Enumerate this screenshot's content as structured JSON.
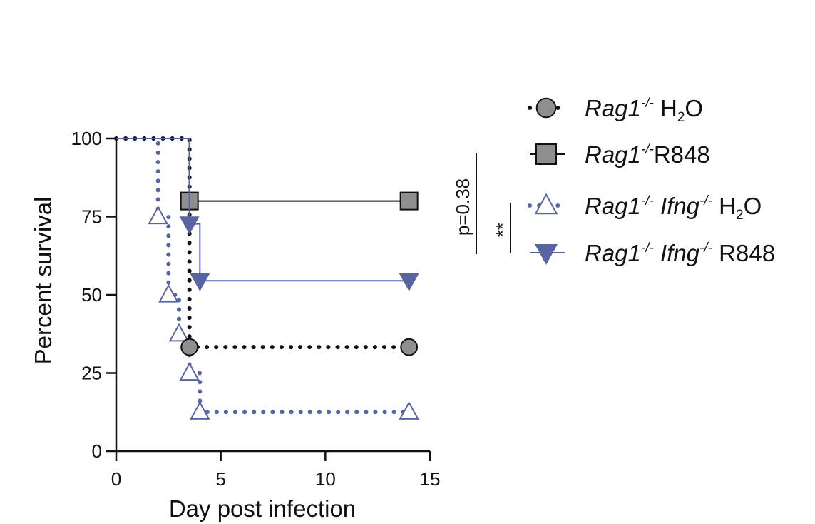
{
  "chart_data": {
    "type": "line",
    "subtype": "kaplan-meier survival",
    "title": "",
    "xlabel": "Day post infection",
    "ylabel": "Percent survival",
    "xlim": [
      0,
      15
    ],
    "ylim": [
      0,
      100
    ],
    "xticks": [
      0,
      5,
      10,
      15
    ],
    "yticks": [
      0,
      25,
      50,
      75,
      100
    ],
    "grid": false,
    "legend_position": "right",
    "colors": {
      "black": "#111111",
      "gray_fill": "#8f8f8f",
      "blue": "#5965a3"
    },
    "series": [
      {
        "name": "Rag1-/- H2O",
        "legend": {
          "gene": "Rag1",
          "gene_sup": "-/-",
          "treatment": "H",
          "treatment_sub": "2",
          "treatment_tail": "O"
        },
        "color": "#111111",
        "line_style": "dotted",
        "marker": "circle",
        "marker_fill": "#8f8f8f",
        "x": [
          0,
          3.5,
          3.5,
          14
        ],
        "y": [
          100,
          100,
          33.3,
          33.3
        ],
        "marked_points": [
          [
            3.5,
            33.3
          ],
          [
            14,
            33.3
          ]
        ]
      },
      {
        "name": "Rag1-/-R848",
        "legend": {
          "gene": "Rag1",
          "gene_sup": "-/-",
          "treatment": "R848"
        },
        "color": "#111111",
        "line_style": "solid",
        "marker": "square",
        "marker_fill": "#8f8f8f",
        "x": [
          0,
          3.5,
          3.5,
          14
        ],
        "y": [
          100,
          100,
          80,
          80
        ],
        "marked_points": [
          [
            3.5,
            80
          ],
          [
            14,
            80
          ]
        ]
      },
      {
        "name": "Rag1-/- Ifng-/- H2O",
        "legend": {
          "gene": "Rag1",
          "gene_sup": "-/-",
          "gene2": "Ifng",
          "gene2_sup": "-/-",
          "treatment": "H",
          "treatment_sub": "2",
          "treatment_tail": "O"
        },
        "color": "#5965a3",
        "line_style": "dotted",
        "marker": "triangle-up-open",
        "x": [
          0,
          2,
          2,
          2.5,
          2.5,
          3,
          3,
          3.5,
          3.5,
          4,
          4,
          14
        ],
        "y": [
          100,
          100,
          75,
          75,
          50,
          50,
          37.5,
          37.5,
          25,
          25,
          12.5,
          12.5
        ],
        "marked_points": [
          [
            2,
            75
          ],
          [
            2.5,
            50
          ],
          [
            3,
            37.5
          ],
          [
            3.5,
            25
          ],
          [
            4,
            12.5
          ],
          [
            14,
            12.5
          ]
        ]
      },
      {
        "name": "Rag1-/- Ifng-/- R848",
        "legend": {
          "gene": "Rag1",
          "gene_sup": "-/-",
          "gene2": "Ifng",
          "gene2_sup": "-/-",
          "treatment": "R848"
        },
        "color": "#5965a3",
        "line_style": "solid",
        "marker": "triangle-down-filled",
        "x": [
          0,
          3.5,
          3.5,
          4,
          4,
          14
        ],
        "y": [
          100,
          100,
          72.7,
          72.7,
          54.5,
          54.5
        ],
        "marked_points": [
          [
            3.5,
            72.7
          ],
          [
            4,
            54.5
          ],
          [
            14,
            54.5
          ]
        ]
      }
    ],
    "annotations": [
      {
        "text": "p=0.38",
        "rotation": "vertical",
        "compares": [
          "Rag1-/- H2O",
          "Rag1-/-R848"
        ]
      },
      {
        "text": "**",
        "rotation": "vertical",
        "compares": [
          "Rag1-/- Ifng-/- H2O",
          "Rag1-/- Ifng-/- R848"
        ]
      }
    ]
  }
}
